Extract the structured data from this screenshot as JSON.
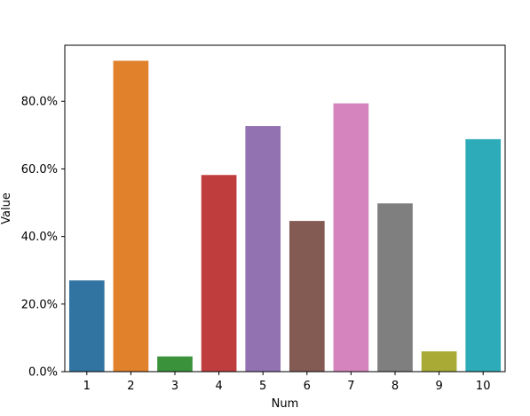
{
  "chart_data": {
    "type": "bar",
    "xlabel": "Num",
    "ylabel": "Value",
    "categories": [
      "1",
      "2",
      "3",
      "4",
      "5",
      "6",
      "7",
      "8",
      "9",
      "10"
    ],
    "values": [
      0.27,
      0.92,
      0.045,
      0.582,
      0.727,
      0.446,
      0.794,
      0.498,
      0.06,
      0.688
    ],
    "ylim": [
      0,
      0.966
    ],
    "yticks": [
      0.0,
      0.2,
      0.4,
      0.6,
      0.8
    ],
    "ytick_labels": [
      "0.0%",
      "20.0%",
      "40.0%",
      "60.0%",
      "80.0%"
    ],
    "y_format": "percent",
    "grid": false,
    "legend": "none",
    "colors": [
      "#3274a1",
      "#e1812c",
      "#3a923a",
      "#c03d3e",
      "#9372b2",
      "#845b53",
      "#d684bd",
      "#7f7f7f",
      "#a9aa35",
      "#2eabb8"
    ]
  }
}
